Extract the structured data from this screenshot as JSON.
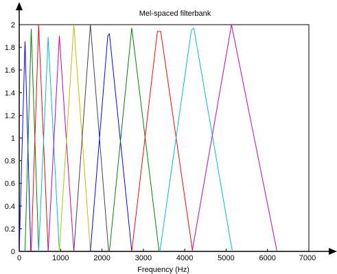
{
  "chart_data": {
    "type": "line",
    "title": "Mel-spaced filterbank",
    "xlabel": "Frequency (Hz)",
    "ylabel": "",
    "xlim": [
      0,
      7000
    ],
    "ylim": [
      0,
      2
    ],
    "x_ticks": [
      0,
      1000,
      2000,
      3000,
      4000,
      5000,
      6000,
      7000
    ],
    "x_tick_labels": [
      "0",
      "1000",
      "2000",
      "3000",
      "4000",
      "5000",
      "6000",
      "7000"
    ],
    "y_ticks": [
      0,
      0.2,
      0.4,
      0.6,
      0.8,
      1,
      1.2,
      1.4,
      1.6,
      1.8,
      2
    ],
    "y_tick_labels": [
      "0",
      "0.2",
      "0.4",
      "0.6",
      "0.8",
      "1",
      "1.2",
      "1.4",
      "1.6",
      "1.8",
      "2"
    ],
    "grid": false,
    "legend": "none",
    "series": [
      {
        "color": "#0000ff",
        "x": [
          0,
          140,
          280
        ],
        "y": [
          0,
          1.85,
          0
        ]
      },
      {
        "color": "#008000",
        "x": [
          140,
          290,
          470
        ],
        "y": [
          0,
          1.96,
          0
        ]
      },
      {
        "color": "#ff0000",
        "x": [
          290,
          470,
          700
        ],
        "y": [
          0,
          2.0,
          0
        ]
      },
      {
        "color": "#00bfbf",
        "x": [
          470,
          700,
          970
        ],
        "y": [
          0,
          1.89,
          0
        ]
      },
      {
        "color": "#bf00bf",
        "x": [
          700,
          970,
          1320
        ],
        "y": [
          0,
          1.9,
          0
        ]
      },
      {
        "color": "#bfbf00",
        "x": [
          970,
          1320,
          1720
        ],
        "y": [
          0,
          2.0,
          0
        ]
      },
      {
        "color": "#404040",
        "x": [
          1320,
          1720,
          2160
        ],
        "y": [
          0,
          2.0,
          0
        ]
      },
      {
        "color": "#0000ff",
        "x": [
          1720,
          2140,
          2180,
          2720
        ],
        "y": [
          0,
          1.9,
          1.92,
          0
        ]
      },
      {
        "color": "#008000",
        "x": [
          2180,
          2720,
          3380
        ],
        "y": [
          0,
          1.97,
          0
        ]
      },
      {
        "color": "#ff0000",
        "x": [
          2720,
          3340,
          3420,
          4190
        ],
        "y": [
          0,
          1.94,
          1.94,
          0
        ]
      },
      {
        "color": "#00bfbf",
        "x": [
          3400,
          4160,
          4220,
          5150
        ],
        "y": [
          0,
          1.95,
          1.97,
          0
        ]
      },
      {
        "color": "#bf00bf",
        "x": [
          4180,
          5130,
          6230
        ],
        "y": [
          0,
          2.0,
          0
        ]
      }
    ]
  }
}
